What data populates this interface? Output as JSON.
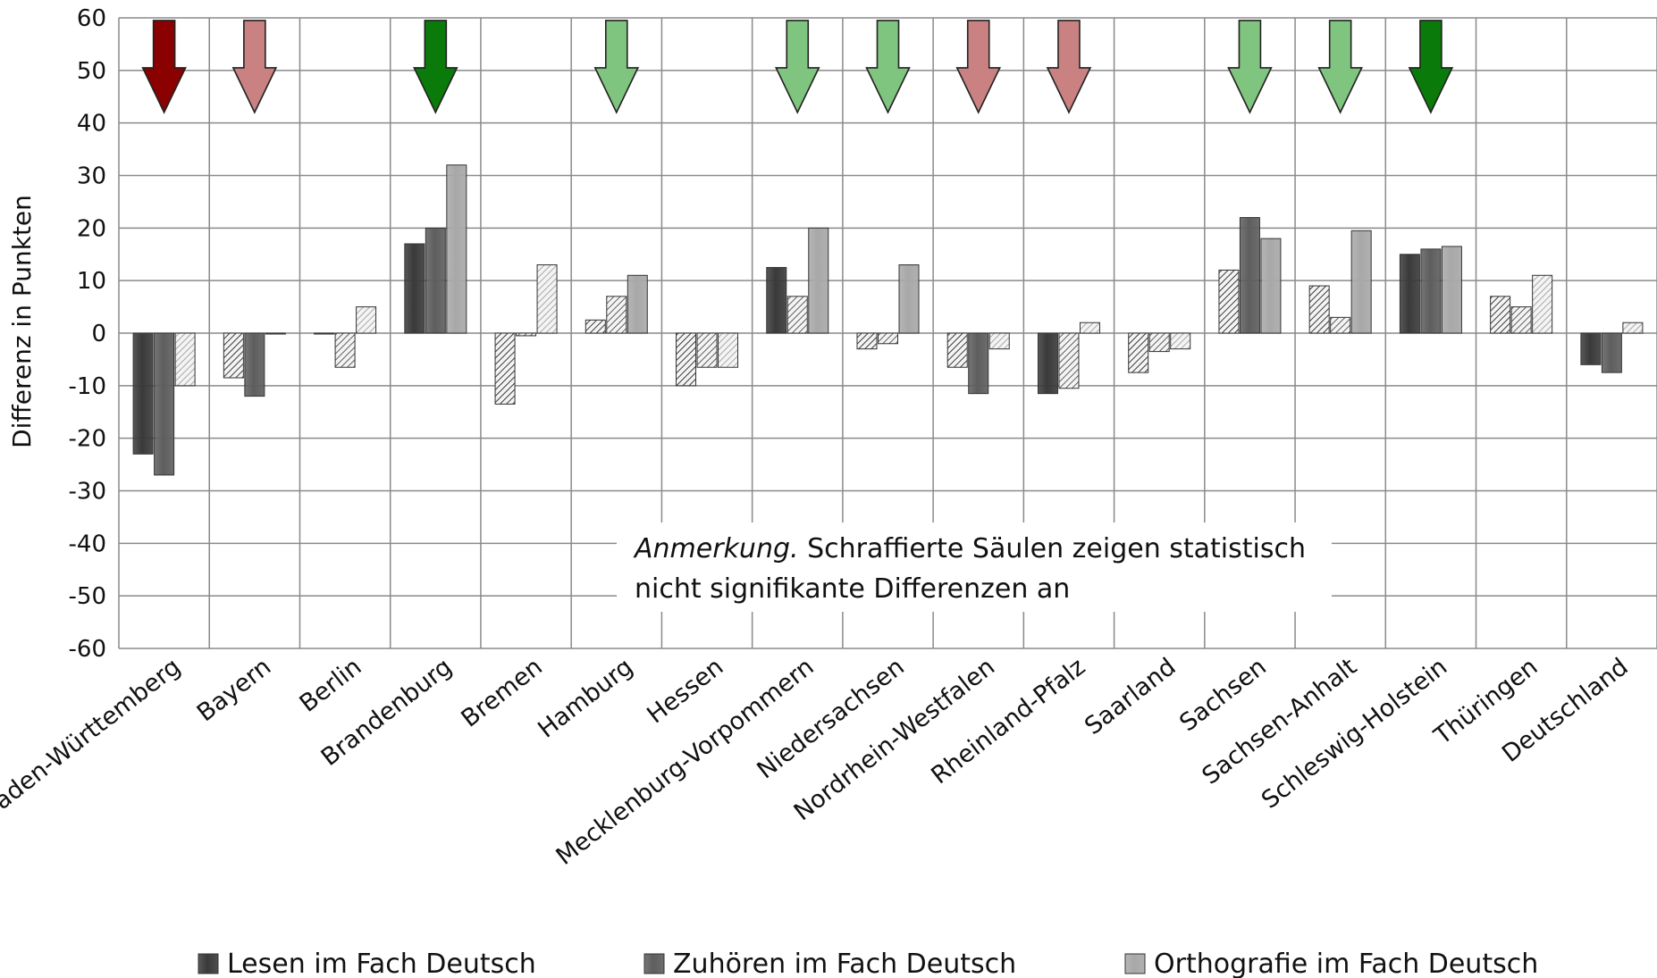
{
  "chart_data": {
    "type": "bar",
    "ylabel": "Differenz in Punkten",
    "ylim": [
      -60,
      60
    ],
    "yticks": [
      60,
      50,
      40,
      30,
      20,
      10,
      0,
      -10,
      -20,
      -30,
      -40,
      -50,
      -60
    ],
    "grid": true,
    "legend_position": "bottom",
    "categories": [
      "Baden-Württemberg",
      "Bayern",
      "Berlin",
      "Brandenburg",
      "Bremen",
      "Hamburg",
      "Hessen",
      "Mecklenburg-Vorpommern",
      "Niedersachsen",
      "Nordrhein-Westfalen",
      "Rheinland-Pfalz",
      "Saarland",
      "Sachsen",
      "Sachsen-Anhalt",
      "Schleswig-Holstein",
      "Thüringen",
      "Deutschland"
    ],
    "series": [
      {
        "name": "Lesen im Fach Deutsch",
        "color": "#3a3a3a",
        "values": [
          -23,
          -8.5,
          0,
          17,
          -13.5,
          2.5,
          -10,
          12.5,
          -3,
          -6.5,
          -11.5,
          -7.5,
          12,
          9,
          15,
          7,
          -6
        ],
        "significant": [
          true,
          false,
          false,
          true,
          false,
          false,
          false,
          true,
          false,
          false,
          true,
          false,
          false,
          false,
          true,
          false,
          true
        ]
      },
      {
        "name": "Zuhören im Fach Deutsch",
        "color": "#5e5e5e",
        "values": [
          -27,
          -12,
          -6.5,
          20,
          -0.5,
          7,
          -6.5,
          7,
          -2,
          -11.5,
          -10.5,
          -3.5,
          22,
          3,
          16,
          5,
          -7.5
        ],
        "significant": [
          true,
          true,
          false,
          true,
          false,
          false,
          false,
          false,
          false,
          true,
          false,
          false,
          true,
          false,
          true,
          false,
          true
        ]
      },
      {
        "name": "Orthografie im Fach Deutsch",
        "color": "#a8a8a8",
        "values": [
          -10,
          0,
          5,
          32,
          13,
          11,
          -6.5,
          20,
          13,
          -3,
          2,
          -3,
          18,
          19.5,
          16.5,
          11,
          2
        ],
        "significant": [
          false,
          false,
          false,
          true,
          false,
          true,
          false,
          true,
          true,
          false,
          false,
          false,
          true,
          true,
          true,
          false,
          false
        ]
      }
    ],
    "arrows": [
      {
        "category": "Baden-Württemberg",
        "color": "#8b0000"
      },
      {
        "category": "Bayern",
        "color": "#c98181"
      },
      {
        "category": "Brandenburg",
        "color": "#0a7a0a"
      },
      {
        "category": "Hamburg",
        "color": "#7fc47f"
      },
      {
        "category": "Mecklenburg-Vorpommern",
        "color": "#7fc47f"
      },
      {
        "category": "Niedersachsen",
        "color": "#7fc47f"
      },
      {
        "category": "Nordrhein-Westfalen",
        "color": "#c98181"
      },
      {
        "category": "Rheinland-Pfalz",
        "color": "#c98181"
      },
      {
        "category": "Sachsen",
        "color": "#7fc47f"
      },
      {
        "category": "Sachsen-Anhalt",
        "color": "#7fc47f"
      },
      {
        "category": "Schleswig-Holstein",
        "color": "#0a7a0a"
      }
    ],
    "annotation": {
      "label": "Anmerkung.",
      "line1": "Schraffierte Säulen zeigen statistisch",
      "line2": "nicht signifikante Differenzen an"
    }
  }
}
